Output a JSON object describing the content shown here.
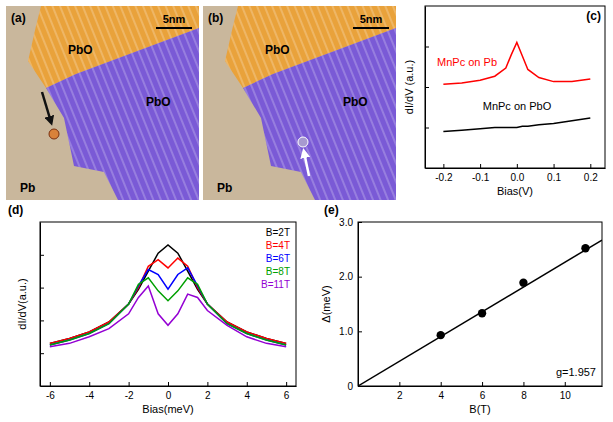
{
  "images": [
    {
      "panel": "(a)",
      "scale_bar": "5nm",
      "labels": [
        "PbO",
        "PbO",
        "Pb"
      ]
    },
    {
      "panel": "(b)",
      "scale_bar": "5nm",
      "labels": [
        "PbO",
        "PbO",
        "Pb"
      ]
    }
  ],
  "chart_data": [
    {
      "type": "line",
      "panel": "(c)",
      "x_label": "Bias(V)",
      "y_label": "dI/dV (a.u.)",
      "x": [
        -0.2,
        -0.15,
        -0.1,
        -0.06,
        -0.03,
        -0.015,
        0,
        0.015,
        0.03,
        0.06,
        0.1,
        0.15,
        0.2
      ],
      "series": [
        {
          "name": "MnPc on Pb",
          "color": "#ff0000",
          "values": [
            6.2,
            6.3,
            6.5,
            6.8,
            7.4,
            8.4,
            9.3,
            8.3,
            7.3,
            6.7,
            6.4,
            6.4,
            6.6
          ]
        },
        {
          "name": "MnPc on PbO",
          "color": "#000000",
          "values": [
            2.7,
            2.8,
            2.9,
            3.0,
            3.0,
            3.0,
            3.0,
            3.1,
            3.1,
            3.2,
            3.3,
            3.5,
            3.7
          ]
        }
      ],
      "xlim": [
        -0.25,
        0.24
      ],
      "ylim": [
        0,
        12
      ],
      "xticks": [
        -0.2,
        -0.1,
        {
          "value": 0,
          "label": "0.0"
        },
        0.1,
        0.2
      ],
      "yticks": [
        3,
        6,
        9
      ],
      "tick_labels": "x"
    },
    {
      "type": "line",
      "panel": "(d)",
      "x_label": "Bias(meV)",
      "y_label": "dI/dV(a.u.)",
      "x": [
        -6,
        -5,
        -4,
        -3,
        -2,
        -1.5,
        -1,
        -0.5,
        0,
        0.5,
        1,
        1.5,
        2,
        3,
        4,
        5,
        6
      ],
      "series": [
        {
          "name": "B=2T",
          "color": "#000000",
          "values": [
            2.6,
            2.9,
            3.3,
            3.9,
            5.0,
            5.9,
            7.0,
            8.1,
            8.6,
            8.1,
            7.0,
            5.9,
            5.0,
            3.9,
            3.3,
            2.9,
            2.6
          ]
        },
        {
          "name": "B=4T",
          "color": "#ff0000",
          "values": [
            2.6,
            2.9,
            3.3,
            3.9,
            5.0,
            6.0,
            7.3,
            7.7,
            7.2,
            7.8,
            7.3,
            6.0,
            5.0,
            3.9,
            3.3,
            2.9,
            2.6
          ]
        },
        {
          "name": "B=6T",
          "color": "#0000ff",
          "values": [
            2.5,
            2.8,
            3.2,
            3.8,
            5.0,
            6.1,
            7.1,
            6.8,
            5.9,
            6.8,
            7.2,
            6.1,
            5.0,
            3.8,
            3.2,
            2.8,
            2.5
          ]
        },
        {
          "name": "B=8T",
          "color": "#00a000",
          "values": [
            2.5,
            2.8,
            3.2,
            3.8,
            5.0,
            6.2,
            6.6,
            5.8,
            5.2,
            5.8,
            6.6,
            6.2,
            5.0,
            3.8,
            3.2,
            2.8,
            2.5
          ]
        },
        {
          "name": "B=11T",
          "color": "#9400d3",
          "values": [
            2.4,
            2.6,
            3.0,
            3.5,
            4.4,
            5.4,
            6.1,
            4.4,
            3.7,
            4.4,
            5.6,
            5.4,
            4.6,
            3.7,
            3.0,
            2.6,
            2.4
          ]
        }
      ],
      "xlim": [
        -6.5,
        6.5
      ],
      "ylim": [
        0,
        10
      ],
      "xticks": [
        -6,
        -4,
        -2,
        0,
        2,
        4,
        6
      ],
      "yticks": [
        2,
        4,
        6,
        8
      ],
      "tick_labels": "x",
      "legend": "upper right"
    },
    {
      "type": "scatter",
      "panel": "(e)",
      "x_label": "B(T)",
      "y_label": "Δ(meV)",
      "series": [
        {
          "type": "scatter",
          "color": "#000000",
          "marker": "circle",
          "x": [
            4,
            6,
            8,
            11
          ],
          "values": [
            0.93,
            1.33,
            1.89,
            2.52
          ]
        },
        {
          "type": "line",
          "color": "#000000",
          "x": [
            0,
            11.8
          ],
          "values": [
            0,
            2.67
          ]
        }
      ],
      "xlim": [
        0,
        11.8
      ],
      "ylim": [
        0,
        3
      ],
      "xticks": [
        2,
        4,
        6,
        8,
        10
      ],
      "yticks": [
        0,
        {
          "value": 1,
          "label": "1.0"
        },
        {
          "value": 2,
          "label": "2.0"
        },
        {
          "value": 3,
          "label": "3.0"
        }
      ],
      "annotations": [
        "g=1.957"
      ]
    }
  ]
}
